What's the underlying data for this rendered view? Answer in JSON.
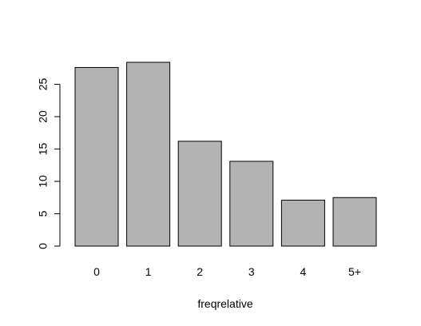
{
  "chart_data": {
    "type": "bar",
    "categories": [
      "0",
      "1",
      "2",
      "3",
      "4",
      "5+"
    ],
    "values": [
      27.6,
      28.4,
      16.2,
      13.1,
      7.1,
      7.5
    ],
    "title": "",
    "xlabel": "freqrelative",
    "ylabel": "",
    "ylim": [
      0,
      28.4
    ],
    "yticks": [
      0,
      5,
      10,
      15,
      20,
      25
    ],
    "grid": false,
    "bar_color": "#b3b3b3",
    "bar_border_color": "#000000"
  }
}
